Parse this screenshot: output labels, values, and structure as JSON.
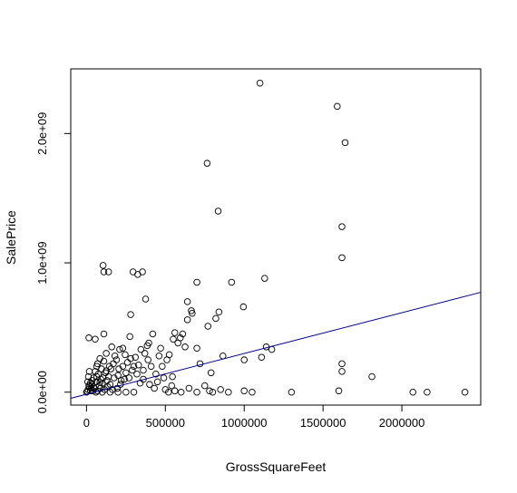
{
  "chart_data": {
    "type": "scatter",
    "title": "",
    "xlabel": "GrossSquareFeet",
    "ylabel": "SalePrice",
    "xlim": [
      -100000,
      2500000
    ],
    "ylim": [
      -100000000,
      2500000000
    ],
    "x_ticks": [
      {
        "value": 0,
        "label": "0"
      },
      {
        "value": 500000,
        "label": "500000"
      },
      {
        "value": 1000000,
        "label": "1000000"
      },
      {
        "value": 1500000,
        "label": "1500000"
      },
      {
        "value": 2000000,
        "label": "2000000"
      }
    ],
    "y_ticks": [
      {
        "value": 0,
        "label": "0.0e+00"
      },
      {
        "value": 1000000000,
        "label": "1.0e+09"
      },
      {
        "value": 2000000000,
        "label": "2.0e+09"
      }
    ],
    "grid": false,
    "legend": "none",
    "point_color": "#000000",
    "fit_line": {
      "intercept": -16000000,
      "slope": 315.2,
      "color": "#00008b"
    },
    "points": [
      [
        1100000,
        2390000000
      ],
      [
        1590000,
        2210000000
      ],
      [
        1640000,
        1930000000
      ],
      [
        765000,
        1770000000
      ],
      [
        835000,
        1400000000
      ],
      [
        1620000,
        1280000000
      ],
      [
        1620000,
        1040000000
      ],
      [
        105000,
        980000000
      ],
      [
        140000,
        930000000
      ],
      [
        110000,
        930000000
      ],
      [
        295000,
        930000000
      ],
      [
        355000,
        930000000
      ],
      [
        325000,
        910000000
      ],
      [
        1130000,
        880000000
      ],
      [
        700000,
        850000000
      ],
      [
        920000,
        850000000
      ],
      [
        375000,
        720000000
      ],
      [
        640000,
        700000000
      ],
      [
        665000,
        630000000
      ],
      [
        670000,
        610000000
      ],
      [
        995000,
        660000000
      ],
      [
        840000,
        620000000
      ],
      [
        280000,
        600000000
      ],
      [
        820000,
        570000000
      ],
      [
        640000,
        560000000
      ],
      [
        770000,
        510000000
      ],
      [
        420000,
        450000000
      ],
      [
        110000,
        450000000
      ],
      [
        275000,
        430000000
      ],
      [
        560000,
        460000000
      ],
      [
        595000,
        420000000
      ],
      [
        550000,
        410000000
      ],
      [
        55000,
        410000000
      ],
      [
        15000,
        420000000
      ],
      [
        625000,
        350000000
      ],
      [
        395000,
        380000000
      ],
      [
        385000,
        360000000
      ],
      [
        345000,
        330000000
      ],
      [
        1140000,
        350000000
      ],
      [
        1175000,
        330000000
      ],
      [
        1110000,
        270000000
      ],
      [
        865000,
        280000000
      ],
      [
        1000000,
        250000000
      ],
      [
        700000,
        340000000
      ],
      [
        720000,
        220000000
      ],
      [
        790000,
        150000000
      ],
      [
        460000,
        280000000
      ],
      [
        510000,
        250000000
      ],
      [
        480000,
        200000000
      ],
      [
        545000,
        120000000
      ],
      [
        440000,
        140000000
      ],
      [
        245000,
        290000000
      ],
      [
        280000,
        260000000
      ],
      [
        300000,
        200000000
      ],
      [
        360000,
        170000000
      ],
      [
        210000,
        330000000
      ],
      [
        230000,
        340000000
      ],
      [
        190000,
        250000000
      ],
      [
        170000,
        220000000
      ],
      [
        155000,
        180000000
      ],
      [
        120000,
        150000000
      ],
      [
        90000,
        100000000
      ],
      [
        75000,
        140000000
      ],
      [
        60000,
        80000000
      ],
      [
        45000,
        110000000
      ],
      [
        35000,
        60000000
      ],
      [
        20000,
        40000000
      ],
      [
        10000,
        20000000
      ],
      [
        5000,
        5000000
      ],
      [
        0,
        0
      ],
      [
        25000,
        10000000
      ],
      [
        50000,
        30000000
      ],
      [
        80000,
        50000000
      ],
      [
        100000,
        70000000
      ],
      [
        130000,
        90000000
      ],
      [
        150000,
        60000000
      ],
      [
        175000,
        110000000
      ],
      [
        200000,
        130000000
      ],
      [
        220000,
        90000000
      ],
      [
        250000,
        150000000
      ],
      [
        270000,
        110000000
      ],
      [
        320000,
        140000000
      ],
      [
        340000,
        70000000
      ],
      [
        400000,
        60000000
      ],
      [
        430000,
        30000000
      ],
      [
        500000,
        20000000
      ],
      [
        520000,
        0
      ],
      [
        560000,
        10000000
      ],
      [
        600000,
        0
      ],
      [
        650000,
        30000000
      ],
      [
        700000,
        0
      ],
      [
        750000,
        50000000
      ],
      [
        780000,
        10000000
      ],
      [
        800000,
        0
      ],
      [
        850000,
        20000000
      ],
      [
        900000,
        0
      ],
      [
        1000000,
        10000000
      ],
      [
        1050000,
        0
      ],
      [
        1300000,
        0
      ],
      [
        1620000,
        220000000
      ],
      [
        1620000,
        160000000
      ],
      [
        1810000,
        120000000
      ],
      [
        2070000,
        0
      ],
      [
        2160000,
        0
      ],
      [
        2400000,
        0
      ],
      [
        1600000,
        10000000
      ],
      [
        300000,
        0
      ],
      [
        250000,
        0
      ],
      [
        200000,
        0
      ],
      [
        150000,
        0
      ],
      [
        100000,
        0
      ],
      [
        60000,
        0
      ],
      [
        40000,
        10000000
      ],
      [
        30000,
        30000000
      ],
      [
        15000,
        50000000
      ],
      [
        8000,
        80000000
      ],
      [
        12000,
        120000000
      ],
      [
        18000,
        160000000
      ],
      [
        65000,
        200000000
      ],
      [
        85000,
        260000000
      ],
      [
        125000,
        300000000
      ],
      [
        160000,
        350000000
      ],
      [
        140000,
        120000000
      ],
      [
        95000,
        180000000
      ],
      [
        70000,
        220000000
      ],
      [
        55000,
        160000000
      ],
      [
        110000,
        240000000
      ],
      [
        180000,
        280000000
      ],
      [
        230000,
        200000000
      ],
      [
        260000,
        230000000
      ],
      [
        310000,
        270000000
      ],
      [
        370000,
        300000000
      ],
      [
        390000,
        250000000
      ],
      [
        330000,
        210000000
      ],
      [
        290000,
        170000000
      ],
      [
        215000,
        60000000
      ],
      [
        195000,
        30000000
      ],
      [
        165000,
        20000000
      ],
      [
        135000,
        40000000
      ],
      [
        115000,
        20000000
      ],
      [
        90000,
        30000000
      ],
      [
        70000,
        10000000
      ],
      [
        45000,
        40000000
      ],
      [
        25000,
        70000000
      ],
      [
        35000,
        90000000
      ],
      [
        65000,
        120000000
      ],
      [
        85000,
        75000000
      ],
      [
        105000,
        110000000
      ],
      [
        125000,
        165000000
      ],
      [
        145000,
        200000000
      ],
      [
        205000,
        180000000
      ],
      [
        240000,
        100000000
      ],
      [
        360000,
        100000000
      ],
      [
        410000,
        200000000
      ],
      [
        470000,
        340000000
      ],
      [
        525000,
        290000000
      ],
      [
        580000,
        380000000
      ],
      [
        610000,
        450000000
      ],
      [
        540000,
        50000000
      ],
      [
        450000,
        80000000
      ],
      [
        490000,
        110000000
      ]
    ]
  }
}
